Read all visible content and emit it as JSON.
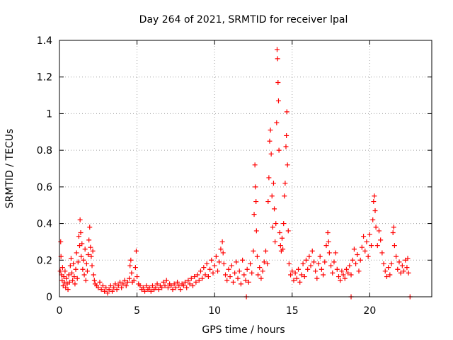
{
  "chart_data": {
    "type": "scatter",
    "title": "Day 264 of 2021, SRMTID for receiver lpal",
    "xlabel": "GPS time / hours",
    "ylabel": "SRMTID / TECUs",
    "xlim": [
      0,
      24
    ],
    "ylim": [
      0,
      1.4
    ],
    "x_ticks": [
      0,
      5,
      10,
      15,
      20
    ],
    "x_tick_labels": [
      "0",
      "5",
      "10",
      "15",
      "20"
    ],
    "y_ticks": [
      0,
      0.2,
      0.4,
      0.6,
      0.8,
      1.0,
      1.2,
      1.4
    ],
    "y_tick_labels": [
      "0",
      "0.2",
      "0.4",
      "0.6",
      "0.8",
      "1",
      "1.2",
      "1.4"
    ],
    "grid": true,
    "marker": "+",
    "marker_color": "#ff0000",
    "series": [
      {
        "name": "SRMTID",
        "points": [
          [
            0.05,
            0.14
          ],
          [
            0.08,
            0.3
          ],
          [
            0.1,
            0.22
          ],
          [
            0.13,
            0.12
          ],
          [
            0.17,
            0.09
          ],
          [
            0.2,
            0.16
          ],
          [
            0.24,
            0.06
          ],
          [
            0.28,
            0.11
          ],
          [
            0.32,
            0.08
          ],
          [
            0.36,
            0.14
          ],
          [
            0.4,
            0.05
          ],
          [
            0.45,
            0.1
          ],
          [
            0.5,
            0.07
          ],
          [
            0.55,
            0.04
          ],
          [
            0.6,
            0.12
          ],
          [
            0.65,
            0.08
          ],
          [
            0.7,
            0.17
          ],
          [
            0.75,
            0.21
          ],
          [
            0.8,
            0.13
          ],
          [
            0.85,
            0.09
          ],
          [
            0.9,
            0.18
          ],
          [
            0.95,
            0.11
          ],
          [
            1.0,
            0.07
          ],
          [
            1.05,
            0.15
          ],
          [
            1.1,
            0.24
          ],
          [
            1.15,
            0.1
          ],
          [
            1.2,
            0.19
          ],
          [
            1.25,
            0.33
          ],
          [
            1.3,
            0.28
          ],
          [
            1.33,
            0.42
          ],
          [
            1.37,
            0.35
          ],
          [
            1.4,
            0.22
          ],
          [
            1.45,
            0.29
          ],
          [
            1.5,
            0.15
          ],
          [
            1.55,
            0.2
          ],
          [
            1.6,
            0.12
          ],
          [
            1.65,
            0.26
          ],
          [
            1.7,
            0.09
          ],
          [
            1.75,
            0.18
          ],
          [
            1.8,
            0.14
          ],
          [
            1.85,
            0.23
          ],
          [
            1.9,
            0.31
          ],
          [
            1.95,
            0.38
          ],
          [
            2.0,
            0.27
          ],
          [
            2.05,
            0.22
          ],
          [
            2.1,
            0.17
          ],
          [
            2.15,
            0.25
          ],
          [
            2.2,
            0.12
          ],
          [
            2.25,
            0.09
          ],
          [
            2.3,
            0.07
          ],
          [
            2.4,
            0.06
          ],
          [
            2.5,
            0.05
          ],
          [
            2.6,
            0.08
          ],
          [
            2.7,
            0.04
          ],
          [
            2.8,
            0.06
          ],
          [
            2.9,
            0.03
          ],
          [
            3.0,
            0.05
          ],
          [
            3.1,
            0.02
          ],
          [
            3.2,
            0.04
          ],
          [
            3.3,
            0.06
          ],
          [
            3.4,
            0.03
          ],
          [
            3.5,
            0.05
          ],
          [
            3.6,
            0.07
          ],
          [
            3.7,
            0.04
          ],
          [
            3.8,
            0.06
          ],
          [
            3.9,
            0.08
          ],
          [
            4.0,
            0.05
          ],
          [
            4.1,
            0.07
          ],
          [
            4.2,
            0.09
          ],
          [
            4.3,
            0.06
          ],
          [
            4.4,
            0.08
          ],
          [
            4.5,
            0.1
          ],
          [
            4.55,
            0.17
          ],
          [
            4.6,
            0.2
          ],
          [
            4.65,
            0.13
          ],
          [
            4.7,
            0.08
          ],
          [
            4.8,
            0.09
          ],
          [
            4.9,
            0.16
          ],
          [
            4.95,
            0.25
          ],
          [
            5.0,
            0.11
          ],
          [
            5.1,
            0.07
          ],
          [
            5.2,
            0.06
          ],
          [
            5.3,
            0.04
          ],
          [
            5.4,
            0.05
          ],
          [
            5.5,
            0.03
          ],
          [
            5.6,
            0.06
          ],
          [
            5.7,
            0.04
          ],
          [
            5.8,
            0.05
          ],
          [
            5.9,
            0.03
          ],
          [
            6.0,
            0.06
          ],
          [
            6.1,
            0.04
          ],
          [
            6.2,
            0.05
          ],
          [
            6.3,
            0.07
          ],
          [
            6.4,
            0.04
          ],
          [
            6.5,
            0.06
          ],
          [
            6.6,
            0.05
          ],
          [
            6.7,
            0.08
          ],
          [
            6.8,
            0.06
          ],
          [
            6.9,
            0.09
          ],
          [
            7.0,
            0.05
          ],
          [
            7.1,
            0.07
          ],
          [
            7.2,
            0.06
          ],
          [
            7.3,
            0.04
          ],
          [
            7.4,
            0.07
          ],
          [
            7.5,
            0.05
          ],
          [
            7.6,
            0.08
          ],
          [
            7.7,
            0.06
          ],
          [
            7.8,
            0.04
          ],
          [
            7.9,
            0.07
          ],
          [
            8.0,
            0.06
          ],
          [
            8.1,
            0.08
          ],
          [
            8.2,
            0.05
          ],
          [
            8.3,
            0.09
          ],
          [
            8.4,
            0.07
          ],
          [
            8.5,
            0.1
          ],
          [
            8.6,
            0.06
          ],
          [
            8.7,
            0.11
          ],
          [
            8.8,
            0.08
          ],
          [
            8.9,
            0.12
          ],
          [
            9.0,
            0.09
          ],
          [
            9.1,
            0.14
          ],
          [
            9.2,
            0.1
          ],
          [
            9.3,
            0.16
          ],
          [
            9.4,
            0.12
          ],
          [
            9.5,
            0.18
          ],
          [
            9.6,
            0.11
          ],
          [
            9.7,
            0.15
          ],
          [
            9.8,
            0.2
          ],
          [
            9.9,
            0.13
          ],
          [
            10.0,
            0.17
          ],
          [
            10.1,
            0.22
          ],
          [
            10.2,
            0.14
          ],
          [
            10.3,
            0.19
          ],
          [
            10.4,
            0.26
          ],
          [
            10.5,
            0.3
          ],
          [
            10.55,
            0.24
          ],
          [
            10.6,
            0.18
          ],
          [
            10.7,
            0.12
          ],
          [
            10.8,
            0.09
          ],
          [
            10.9,
            0.15
          ],
          [
            11.0,
            0.11
          ],
          [
            11.1,
            0.17
          ],
          [
            11.2,
            0.08
          ],
          [
            11.3,
            0.13
          ],
          [
            11.4,
            0.19
          ],
          [
            11.5,
            0.1
          ],
          [
            11.6,
            0.14
          ],
          [
            11.7,
            0.07
          ],
          [
            11.8,
            0.2
          ],
          [
            11.9,
            0.12
          ],
          [
            12.0,
            0.09
          ],
          [
            12.1,
            0.15
          ],
          [
            12.2,
            0.08
          ],
          [
            12.3,
            0.18
          ],
          [
            12.4,
            0.13
          ],
          [
            12.5,
            0.25
          ],
          [
            12.55,
            0.45
          ],
          [
            12.6,
            0.72
          ],
          [
            12.63,
            0.6
          ],
          [
            12.67,
            0.52
          ],
          [
            12.7,
            0.36
          ],
          [
            12.75,
            0.22
          ],
          [
            12.8,
            0.12
          ],
          [
            12.9,
            0.16
          ],
          [
            13.0,
            0.1
          ],
          [
            13.1,
            0.14
          ],
          [
            13.2,
            0.19
          ],
          [
            13.3,
            0.25
          ],
          [
            13.4,
            0.18
          ],
          [
            13.45,
            0.52
          ],
          [
            13.5,
            0.65
          ],
          [
            13.55,
            0.85
          ],
          [
            13.6,
            0.91
          ],
          [
            13.65,
            0.78
          ],
          [
            13.7,
            0.55
          ],
          [
            13.75,
            0.38
          ],
          [
            13.8,
            0.62
          ],
          [
            13.85,
            0.48
          ],
          [
            13.9,
            0.3
          ],
          [
            13.95,
            0.4
          ],
          [
            14.0,
            0.95
          ],
          [
            14.03,
            1.35
          ],
          [
            14.06,
            1.3
          ],
          [
            14.09,
            1.17
          ],
          [
            14.12,
            1.07
          ],
          [
            14.15,
            0.8
          ],
          [
            14.2,
            0.35
          ],
          [
            14.25,
            0.28
          ],
          [
            14.3,
            0.25
          ],
          [
            14.35,
            0.32
          ],
          [
            14.4,
            0.26
          ],
          [
            14.45,
            0.4
          ],
          [
            14.5,
            0.55
          ],
          [
            14.55,
            0.62
          ],
          [
            14.6,
            0.82
          ],
          [
            14.63,
            0.88
          ],
          [
            14.66,
            1.01
          ],
          [
            14.7,
            0.72
          ],
          [
            14.75,
            0.36
          ],
          [
            14.8,
            0.18
          ],
          [
            14.9,
            0.12
          ],
          [
            15.0,
            0.14
          ],
          [
            15.1,
            0.09
          ],
          [
            15.2,
            0.13
          ],
          [
            15.3,
            0.1
          ],
          [
            15.4,
            0.15
          ],
          [
            15.5,
            0.08
          ],
          [
            15.6,
            0.12
          ],
          [
            15.7,
            0.18
          ],
          [
            15.8,
            0.11
          ],
          [
            15.9,
            0.2
          ],
          [
            16.0,
            0.15
          ],
          [
            16.1,
            0.22
          ],
          [
            16.2,
            0.17
          ],
          [
            16.3,
            0.25
          ],
          [
            16.4,
            0.19
          ],
          [
            16.5,
            0.14
          ],
          [
            16.6,
            0.1
          ],
          [
            16.7,
            0.18
          ],
          [
            16.8,
            0.22
          ],
          [
            16.9,
            0.15
          ],
          [
            17.0,
            0.12
          ],
          [
            17.1,
            0.19
          ],
          [
            17.2,
            0.28
          ],
          [
            17.3,
            0.35
          ],
          [
            17.35,
            0.3
          ],
          [
            17.4,
            0.24
          ],
          [
            17.5,
            0.17
          ],
          [
            17.6,
            0.13
          ],
          [
            17.7,
            0.19
          ],
          [
            17.8,
            0.24
          ],
          [
            17.9,
            0.15
          ],
          [
            18.0,
            0.11
          ],
          [
            18.1,
            0.09
          ],
          [
            18.2,
            0.14
          ],
          [
            18.3,
            0.12
          ],
          [
            18.4,
            0.1
          ],
          [
            18.5,
            0.15
          ],
          [
            18.6,
            0.13
          ],
          [
            18.7,
            0.17
          ],
          [
            18.8,
            0.12
          ],
          [
            18.9,
            0.2
          ],
          [
            19.0,
            0.26
          ],
          [
            19.1,
            0.18
          ],
          [
            19.2,
            0.23
          ],
          [
            19.3,
            0.14
          ],
          [
            19.4,
            0.2
          ],
          [
            19.5,
            0.27
          ],
          [
            19.6,
            0.33
          ],
          [
            19.7,
            0.25
          ],
          [
            19.8,
            0.3
          ],
          [
            19.9,
            0.22
          ],
          [
            20.0,
            0.34
          ],
          [
            20.1,
            0.28
          ],
          [
            20.2,
            0.42
          ],
          [
            20.25,
            0.52
          ],
          [
            20.3,
            0.55
          ],
          [
            20.35,
            0.47
          ],
          [
            20.4,
            0.38
          ],
          [
            20.5,
            0.28
          ],
          [
            20.6,
            0.36
          ],
          [
            20.7,
            0.31
          ],
          [
            20.8,
            0.24
          ],
          [
            20.9,
            0.18
          ],
          [
            21.0,
            0.14
          ],
          [
            21.1,
            0.11
          ],
          [
            21.2,
            0.16
          ],
          [
            21.3,
            0.12
          ],
          [
            21.4,
            0.18
          ],
          [
            21.5,
            0.35
          ],
          [
            21.55,
            0.38
          ],
          [
            21.6,
            0.28
          ],
          [
            21.7,
            0.22
          ],
          [
            21.8,
            0.15
          ],
          [
            21.9,
            0.19
          ],
          [
            22.0,
            0.13
          ],
          [
            22.1,
            0.17
          ],
          [
            22.2,
            0.14
          ],
          [
            22.3,
            0.2
          ],
          [
            22.4,
            0.16
          ],
          [
            22.45,
            0.21
          ],
          [
            22.5,
            0.13
          ],
          [
            12.05,
            0.0
          ],
          [
            18.8,
            0.0
          ],
          [
            22.6,
            0.0
          ]
        ]
      }
    ]
  }
}
